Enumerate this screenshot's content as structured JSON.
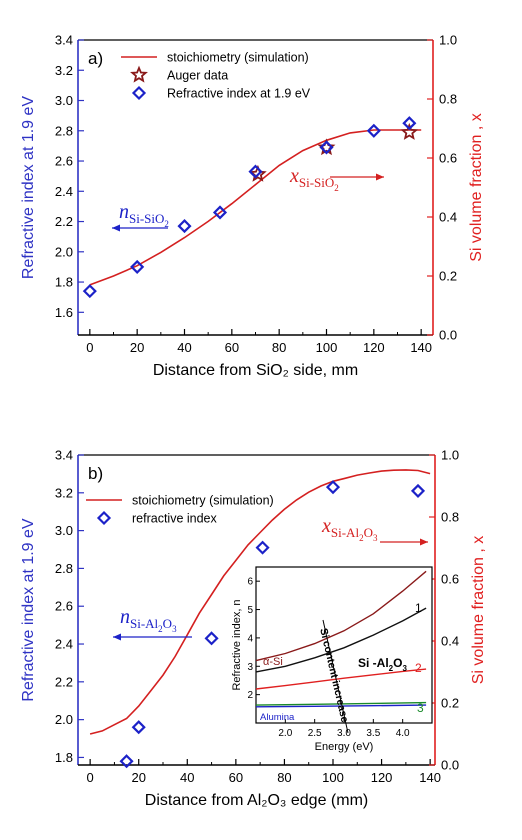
{
  "chart_data": [
    {
      "type": "line",
      "panel_label": "a)",
      "xlabel": "Distance from SiO₂ side, mm",
      "ylabel_left": "Refractive index at 1.9 eV",
      "ylabel_right": "Si volume fraction , x",
      "xlim": [
        -5,
        145
      ],
      "ylim_left": [
        1.45,
        3.4
      ],
      "ylim_right": [
        0.0,
        1.0
      ],
      "x_ticks": [
        0,
        20,
        40,
        60,
        80,
        100,
        120,
        140
      ],
      "y_ticks_left": [
        1.6,
        1.8,
        2.0,
        2.2,
        2.4,
        2.6,
        2.8,
        3.0,
        3.2,
        3.4
      ],
      "y_ticks_right": [
        0.0,
        0.2,
        0.4,
        0.6,
        0.8,
        1.0
      ],
      "grid": false,
      "legend_position": "top-center",
      "colors": {
        "left_axis": "#2f33c4",
        "right_axis": "#e02020",
        "line": "#d42020",
        "auger": "#8a1a1a",
        "index": "#1c22c8"
      },
      "series": [
        {
          "name": "stoichiometry (simulation)",
          "style": "line",
          "axis": "right",
          "x": [
            0,
            10,
            20,
            30,
            40,
            50,
            60,
            70,
            80,
            90,
            100,
            110,
            120,
            130,
            140
          ],
          "y": [
            0.17,
            0.2,
            0.235,
            0.28,
            0.33,
            0.385,
            0.445,
            0.51,
            0.575,
            0.625,
            0.66,
            0.685,
            0.695,
            0.695,
            0.695
          ]
        },
        {
          "name": "Auger data",
          "style": "star",
          "axis": "right",
          "x": [
            71,
            100,
            135
          ],
          "y": [
            0.545,
            0.635,
            0.687
          ]
        },
        {
          "name": "Refractive index at 1.9 eV",
          "style": "diamond",
          "axis": "left",
          "x": [
            0,
            20,
            40,
            55,
            70,
            100,
            120,
            135
          ],
          "y": [
            1.74,
            1.9,
            2.17,
            2.26,
            2.53,
            2.69,
            2.8,
            2.85
          ]
        }
      ],
      "annotations": {
        "n_main": "n",
        "n_sub": "Si-SiO",
        "n_sub2": "2",
        "x_main": "x",
        "x_sub": "Si-SiO",
        "x_sub2": "2"
      }
    },
    {
      "type": "line",
      "panel_label": "b)",
      "xlabel": "Distance from Al₂O₃ edge (mm)",
      "ylabel_left": "Refractive index at 1.9 eV",
      "ylabel_right": "Si volume fraction , x",
      "xlim": [
        -5,
        142
      ],
      "ylim_left": [
        1.76,
        3.4
      ],
      "ylim_right": [
        0.0,
        1.0
      ],
      "x_ticks": [
        0,
        20,
        40,
        60,
        80,
        100,
        120,
        140
      ],
      "y_ticks_left": [
        1.8,
        2.0,
        2.2,
        2.4,
        2.6,
        2.8,
        3.0,
        3.2,
        3.4
      ],
      "y_ticks_right": [
        0.0,
        0.2,
        0.4,
        0.6,
        0.8,
        1.0
      ],
      "grid": false,
      "legend_position": "top-left",
      "colors": {
        "left_axis": "#2f33c4",
        "right_axis": "#e02020",
        "line": "#d42020",
        "index": "#1c22c8"
      },
      "series": [
        {
          "name": "stoichiometry (simulation)",
          "style": "line",
          "axis": "right",
          "x": [
            0,
            5,
            10,
            15,
            20,
            25,
            30,
            35,
            40,
            45,
            50,
            55,
            60,
            65,
            70,
            75,
            80,
            85,
            90,
            95,
            100,
            105,
            110,
            115,
            120,
            125,
            130,
            135,
            140
          ],
          "y": [
            0.1,
            0.11,
            0.13,
            0.15,
            0.19,
            0.24,
            0.29,
            0.35,
            0.42,
            0.49,
            0.55,
            0.61,
            0.66,
            0.71,
            0.75,
            0.79,
            0.825,
            0.855,
            0.88,
            0.9,
            0.915,
            0.925,
            0.935,
            0.942,
            0.948,
            0.951,
            0.952,
            0.95,
            0.94
          ]
        },
        {
          "name": "refractive index",
          "style": "diamond",
          "axis": "left",
          "x": [
            15,
            20,
            50,
            71,
            100,
            135
          ],
          "y": [
            1.78,
            1.96,
            2.43,
            2.91,
            3.23,
            3.21
          ]
        }
      ],
      "annotations": {
        "n_main": "n",
        "n_sub": "Si-Al",
        "n_sub2": "2",
        "n_sub3": "O",
        "n_sub4": "3",
        "x_main": "x",
        "x_sub": "Si-Al",
        "x_sub2": "2",
        "x_sub3": "O",
        "x_sub4": "3"
      },
      "inset": {
        "xlabel": "Energy (eV)",
        "ylabel": "Refractive index, n",
        "xlim": [
          1.5,
          4.5
        ],
        "ylim": [
          1.0,
          6.5
        ],
        "x_ticks": [
          2.0,
          2.5,
          3.0,
          3.5,
          4.0
        ],
        "y_ticks": [
          2,
          3,
          4,
          5,
          6
        ],
        "curves": [
          {
            "name": "α-Si",
            "color": "#8a1a1a",
            "x": [
              1.5,
              2.0,
              2.5,
              3.0,
              3.5,
              4.0,
              4.4
            ],
            "y": [
              3.2,
              3.45,
              3.8,
              4.25,
              4.85,
              5.65,
              6.35
            ]
          },
          {
            "name": "1",
            "color": "#111111",
            "x": [
              1.5,
              2.0,
              2.5,
              3.0,
              3.5,
              4.0,
              4.4
            ],
            "y": [
              2.8,
              3.0,
              3.3,
              3.65,
              4.1,
              4.6,
              5.05
            ]
          },
          {
            "name": "2",
            "color": "#e02020",
            "x": [
              1.5,
              2.0,
              2.5,
              3.0,
              3.5,
              4.0,
              4.4
            ],
            "y": [
              2.2,
              2.32,
              2.45,
              2.58,
              2.7,
              2.82,
              2.9
            ]
          },
          {
            "name": "3",
            "color": "#1a8a2a",
            "x": [
              1.5,
              2.5,
              3.5,
              4.4
            ],
            "y": [
              1.63,
              1.66,
              1.69,
              1.72
            ]
          },
          {
            "name": "Alumina",
            "color": "#1c22c8",
            "x": [
              1.5,
              2.5,
              3.5,
              4.4
            ],
            "y": [
              1.57,
              1.59,
              1.61,
              1.63
            ]
          }
        ],
        "labels": {
          "alpha_si": "α-Si",
          "one": "1",
          "two": "2",
          "three": "3",
          "alumina": "Alumina",
          "mid_main": "Si -Al",
          "mid_sub2": "2",
          "mid_sub3": "O",
          "mid_sub4": "3",
          "arrow_text": "Si content increase"
        }
      }
    }
  ]
}
